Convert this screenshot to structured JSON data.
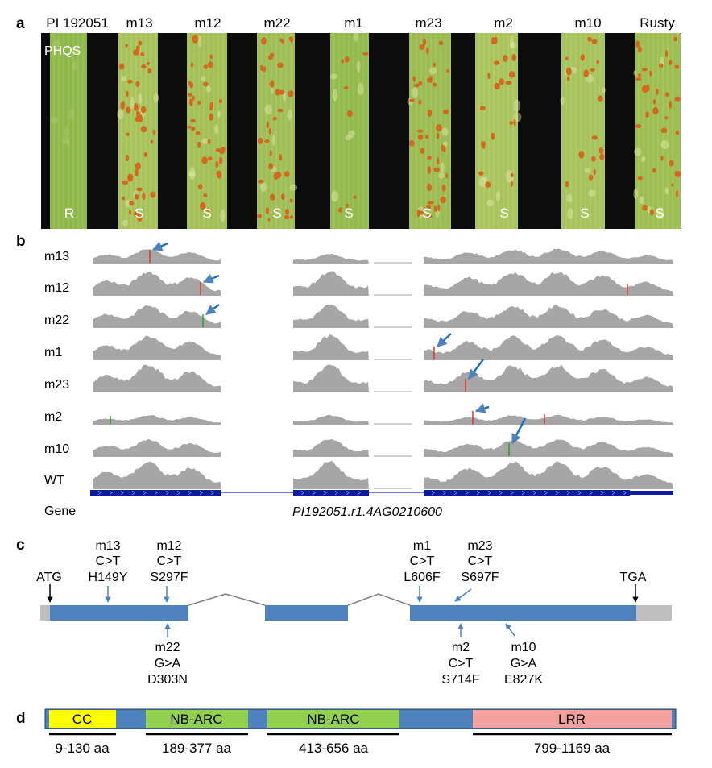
{
  "panel_a": {
    "label": "a",
    "lines": [
      "PI 192051",
      "m13",
      "m12",
      "m22",
      "m1",
      "m23",
      "m2",
      "m10",
      "Rusty"
    ],
    "phqs_tag": "PHQS",
    "reactions": [
      "R",
      "S",
      "S",
      "S",
      "S",
      "S",
      "S",
      "S",
      "S"
    ],
    "colors": {
      "leaf": "#94b84a",
      "pustule": "#d2691e",
      "background": "#0c0c0c"
    }
  },
  "panel_b": {
    "label": "b",
    "tracks": [
      "m13",
      "m12",
      "m22",
      "m1",
      "m23",
      "m2",
      "m10",
      "WT"
    ],
    "gene_track_label": "Gene",
    "gene_id": "PI192051.r1.4AG0210600",
    "colors": {
      "coverage": "#a6a6a6",
      "gene": "#0d1c9e",
      "arrow": "#1f6fbf",
      "snp_red": "#e0322a",
      "snp_green": "#2a9d2a"
    }
  },
  "panel_c": {
    "label": "c",
    "start_codon": "ATG",
    "stop_codon": "TGA",
    "mutations_above": [
      {
        "line": "m13",
        "change": "C>T",
        "aa": "H149Y"
      },
      {
        "line": "m12",
        "change": "C>T",
        "aa": "S297F"
      },
      {
        "line": "m1",
        "change": "C>T",
        "aa": "L606F"
      },
      {
        "line": "m23",
        "change": "C>T",
        "aa": "S697F"
      }
    ],
    "mutations_below": [
      {
        "line": "m22",
        "change": "G>A",
        "aa": "D303N"
      },
      {
        "line": "m2",
        "change": "C>T",
        "aa": "S714F"
      },
      {
        "line": "m10",
        "change": "G>A",
        "aa": "E827K"
      }
    ],
    "colors": {
      "exon": "#4f81bd",
      "utr": "#bfbfbf",
      "arrow": "#4f81bd"
    }
  },
  "panel_d": {
    "label": "d",
    "domains": [
      {
        "name": "CC",
        "range": "9-130 aa",
        "color": "#ffff00"
      },
      {
        "name": "NB-ARC",
        "range": "189-377 aa",
        "color": "#92d050"
      },
      {
        "name": "NB-ARC",
        "range": "413-656 aa",
        "color": "#92d050"
      },
      {
        "name": "LRR",
        "range": "799-1169 aa",
        "color": "#f4a09c"
      }
    ],
    "backbone_color": "#4f81bd"
  }
}
